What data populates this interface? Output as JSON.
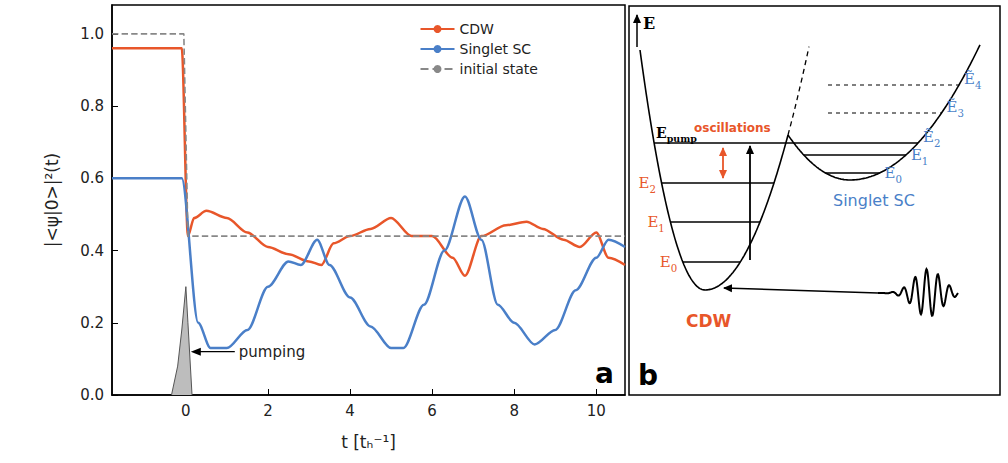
{
  "chart_data": {
    "type": "line",
    "panel_label": "a",
    "xlabel": "t [tₕ⁻¹]",
    "ylabel": "|<ψ|0>|²(t)",
    "xlim": [
      -1.8,
      10.7
    ],
    "ylim": [
      0,
      1.08
    ],
    "xticks": [
      0,
      2,
      4,
      6,
      8,
      10
    ],
    "yticks": [
      {
        "value": 0,
        "label": "0.0"
      },
      0.2,
      0.4,
      0.6,
      0.8,
      {
        "value": 1,
        "label": "1.0"
      }
    ],
    "grid": false,
    "legend": "upper right",
    "series": [
      {
        "name": "CDW",
        "type": "line",
        "color": "#e8562a",
        "line_style": "solid",
        "x": [
          -1.8,
          -0.1,
          0.05,
          0.2,
          0.5,
          1,
          1.5,
          2,
          2.5,
          3,
          3.3,
          3.6,
          4,
          4.5,
          5,
          5.5,
          6,
          6.5,
          6.8,
          7.2,
          7.8,
          8.3,
          8.7,
          9.2,
          9.6,
          10,
          10.3,
          10.7
        ],
        "values": [
          0.96,
          0.96,
          0.44,
          0.49,
          0.51,
          0.49,
          0.45,
          0.41,
          0.39,
          0.37,
          0.36,
          0.42,
          0.44,
          0.46,
          0.49,
          0.44,
          0.44,
          0.38,
          0.33,
          0.44,
          0.47,
          0.48,
          0.46,
          0.43,
          0.41,
          0.45,
          0.38,
          0.36
        ]
      },
      {
        "name": "Singlet SC",
        "type": "line",
        "color": "#4a7fc8",
        "line_style": "solid",
        "x": [
          -1.8,
          -0.1,
          0.3,
          0.6,
          1,
          1.5,
          2,
          2.5,
          2.8,
          3.2,
          3.5,
          4,
          4.5,
          5,
          5.3,
          5.8,
          6.3,
          6.8,
          7.2,
          7.6,
          8,
          8.5,
          9,
          9.5,
          10,
          10.3,
          10.7
        ],
        "values": [
          0.6,
          0.6,
          0.2,
          0.13,
          0.13,
          0.18,
          0.3,
          0.37,
          0.36,
          0.43,
          0.36,
          0.27,
          0.19,
          0.13,
          0.13,
          0.25,
          0.4,
          0.55,
          0.43,
          0.25,
          0.2,
          0.14,
          0.18,
          0.29,
          0.38,
          0.43,
          0.41
        ]
      },
      {
        "name": "initial state",
        "type": "line",
        "color": "#888888",
        "line_style": "dashed",
        "x": [
          -1.8,
          -0.05,
          0.05,
          10.7
        ],
        "values": [
          1,
          1,
          0.44,
          0.44
        ]
      },
      {
        "name": "pumping",
        "type": "area",
        "color": "#bdbdbd",
        "line_style": "solid",
        "x": [
          -0.35,
          -0.2,
          -0.1,
          0,
          0.05,
          0.15
        ],
        "values": [
          0,
          0.08,
          0.18,
          0.3,
          0.2,
          0
        ]
      }
    ]
  },
  "panel_b": {
    "panel_label": "b",
    "energy_axis": "E",
    "pump_level": {
      "symbol": "E",
      "sub": "pump"
    },
    "oscillations": "oscillations",
    "cdw": {
      "name": "CDW",
      "levels": [
        {
          "symbol": "E",
          "sub": "0"
        },
        {
          "symbol": "E",
          "sub": "1"
        },
        {
          "symbol": "E",
          "sub": "2"
        }
      ]
    },
    "sc": {
      "name": "Singlet SC",
      "levels": [
        {
          "symbol": "E",
          "sub": "0"
        },
        {
          "symbol": "E",
          "sub": "1"
        }
      ],
      "excited_levels": [
        {
          "symbol": "Ẽ",
          "sub": "2"
        },
        {
          "symbol": "Ẽ",
          "sub": "3"
        },
        {
          "symbol": "Ẽ",
          "sub": "4"
        }
      ]
    }
  }
}
